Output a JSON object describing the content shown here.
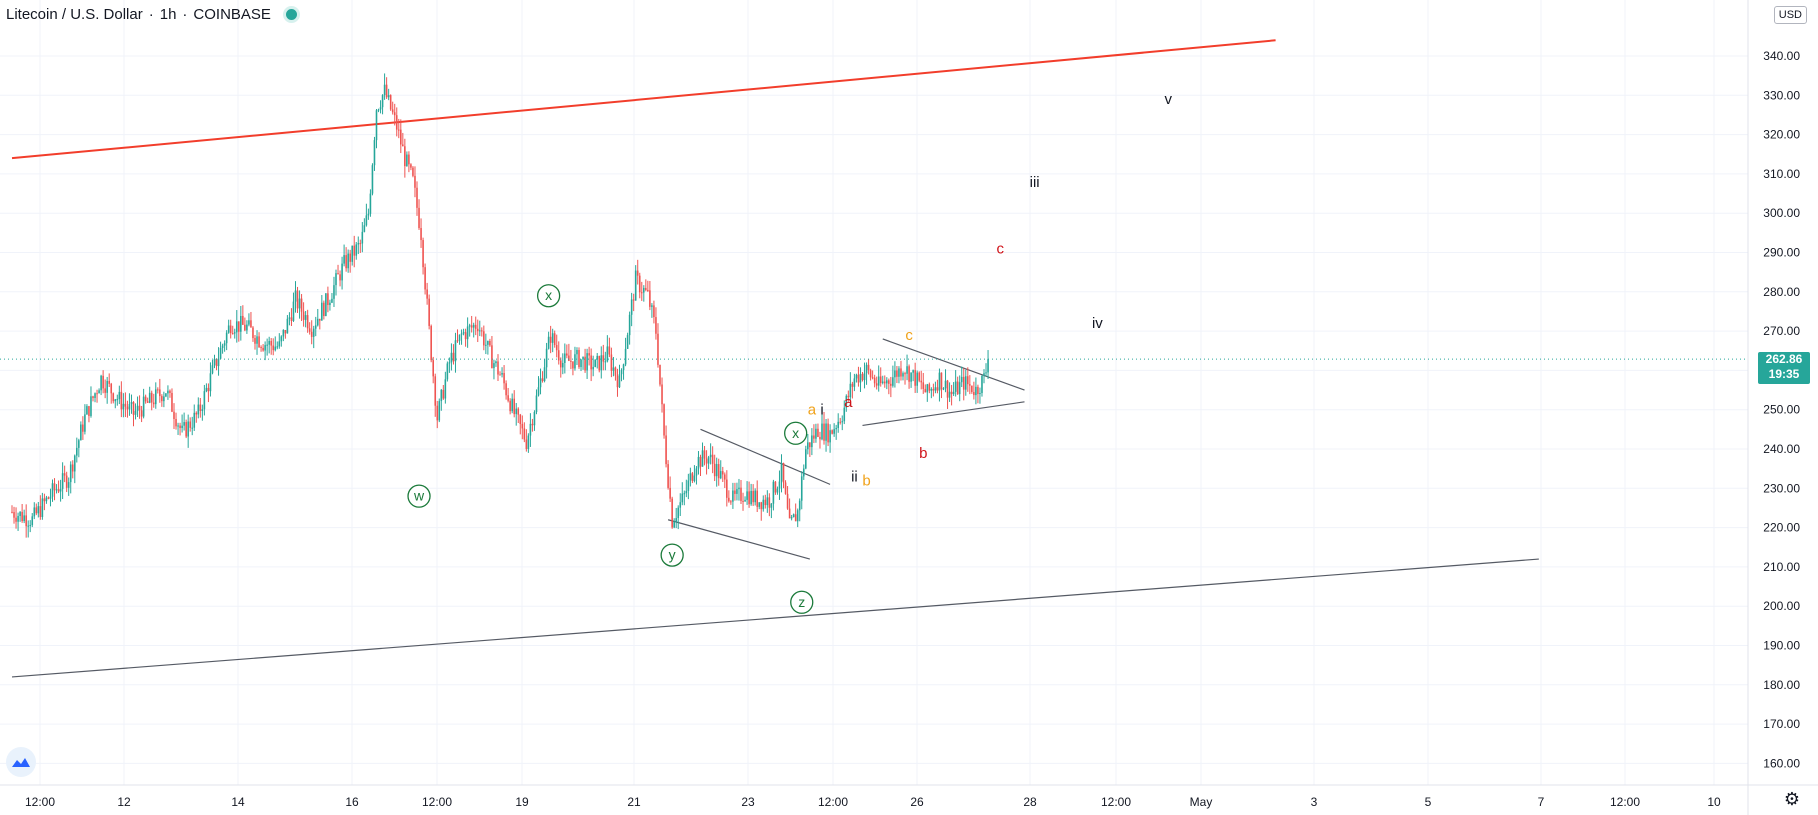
{
  "header": {
    "symbol": "Litecoin / U.S. Dollar",
    "interval": "1h",
    "exchange": "COINBASE",
    "currency": "USD"
  },
  "price_tag": {
    "price": "262.86",
    "countdown": "19:35"
  },
  "colors": {
    "up": "#26a69a",
    "down": "#ef5350",
    "channel_red": "#f23d2b",
    "trend_gray": "#555a64",
    "label_green": "#1b7a3a",
    "label_red": "#d0141a",
    "label_orange": "#f0a21a",
    "label_black": "#131722"
  },
  "chart_data": {
    "type": "candlestick",
    "y_ticks": [
      "340.00",
      "330.00",
      "320.00",
      "310.00",
      "300.00",
      "290.00",
      "280.00",
      "270.00",
      "260.00",
      "250.00",
      "240.00",
      "230.00",
      "220.00",
      "210.00",
      "200.00",
      "190.00",
      "180.00",
      "170.00",
      "160.00"
    ],
    "x_ticks": [
      "12:00",
      "12",
      "14",
      "16",
      "12:00",
      "19",
      "21",
      "23",
      "12:00",
      "26",
      "28",
      "12:00",
      "May",
      "3",
      "5",
      "7",
      "12:00",
      "10"
    ],
    "last_price": 262.86,
    "candles_close_path": [
      [
        0,
        224
      ],
      [
        5,
        222
      ],
      [
        10,
        229
      ],
      [
        14,
        233
      ],
      [
        18,
        248
      ],
      [
        22,
        258
      ],
      [
        26,
        253
      ],
      [
        30,
        249
      ],
      [
        34,
        252
      ],
      [
        38,
        255
      ],
      [
        42,
        244
      ],
      [
        46,
        249
      ],
      [
        50,
        261
      ],
      [
        54,
        272
      ],
      [
        58,
        271
      ],
      [
        62,
        267
      ],
      [
        66,
        266
      ],
      [
        70,
        278
      ],
      [
        74,
        271
      ],
      [
        78,
        278
      ],
      [
        82,
        287
      ],
      [
        86,
        292
      ],
      [
        88,
        300
      ],
      [
        90,
        327
      ],
      [
        92,
        331
      ],
      [
        95,
        322
      ],
      [
        97,
        314
      ],
      [
        99,
        308
      ],
      [
        101,
        295
      ],
      [
        103,
        270
      ],
      [
        105,
        248
      ],
      [
        108,
        262
      ],
      [
        111,
        269
      ],
      [
        115,
        272
      ],
      [
        118,
        264
      ],
      [
        121,
        258
      ],
      [
        124,
        249
      ],
      [
        127,
        242
      ],
      [
        130,
        255
      ],
      [
        133,
        269
      ],
      [
        136,
        262
      ],
      [
        140,
        263
      ],
      [
        144,
        261
      ],
      [
        147,
        264
      ],
      [
        150,
        257
      ],
      [
        154,
        283
      ],
      [
        157,
        279
      ],
      [
        159,
        270
      ],
      [
        161,
        243
      ],
      [
        163,
        222
      ],
      [
        166,
        228
      ],
      [
        169,
        237
      ],
      [
        172,
        238
      ],
      [
        175,
        233
      ],
      [
        178,
        227
      ],
      [
        181,
        229
      ],
      [
        184,
        227
      ],
      [
        187,
        227
      ],
      [
        190,
        234
      ],
      [
        192,
        220
      ],
      [
        194,
        224
      ],
      [
        196,
        240
      ],
      [
        199,
        245
      ],
      [
        202,
        244
      ],
      [
        205,
        249
      ],
      [
        208,
        258
      ],
      [
        211,
        260
      ],
      [
        214,
        256
      ],
      [
        217,
        258
      ],
      [
        220,
        261
      ],
      [
        223,
        258
      ],
      [
        226,
        254
      ],
      [
        229,
        258
      ],
      [
        232,
        254
      ],
      [
        235,
        257
      ],
      [
        238,
        255
      ],
      [
        240,
        258
      ],
      [
        241,
        262
      ]
    ],
    "waves": [
      {
        "label": "w",
        "circled": true,
        "x": 100.5,
        "price": 228
      },
      {
        "label": "x",
        "circled": true,
        "x": 132.5,
        "price": 279
      },
      {
        "label": "y",
        "circled": true,
        "x": 163,
        "price": 213
      },
      {
        "label": "x",
        "circled": true,
        "x": 193.5,
        "price": 244
      },
      {
        "label": "z",
        "circled": true,
        "x": 195,
        "price": 201
      },
      {
        "label": "a",
        "circled": false,
        "x": 197.5,
        "price": 250,
        "color": "orange"
      },
      {
        "label": "i",
        "circled": false,
        "x": 200,
        "price": 250,
        "color": "black"
      },
      {
        "label": "ii",
        "circled": false,
        "x": 208,
        "price": 233,
        "color": "black"
      },
      {
        "label": "b",
        "circled": false,
        "x": 211,
        "price": 232,
        "color": "orange"
      },
      {
        "label": "a",
        "circled": false,
        "x": 206.5,
        "price": 252,
        "color": "red"
      },
      {
        "label": "c",
        "circled": false,
        "x": 221.5,
        "price": 269,
        "color": "orange"
      },
      {
        "label": "b",
        "circled": false,
        "x": 225,
        "price": 239,
        "color": "red"
      },
      {
        "label": "c",
        "circled": false,
        "x": 244,
        "price": 291,
        "color": "red"
      },
      {
        "label": "iii",
        "circled": false,
        "x": 252.5,
        "price": 308,
        "color": "black"
      },
      {
        "label": "iv",
        "circled": false,
        "x": 268,
        "price": 272,
        "color": "black"
      },
      {
        "label": "v",
        "circled": false,
        "x": 285.5,
        "price": 329,
        "color": "black"
      }
    ],
    "trendlines": [
      {
        "name": "upper-channel",
        "color": "red",
        "p1": [
          0,
          314
        ],
        "p2": [
          312,
          344
        ]
      },
      {
        "name": "lower-trend",
        "color": "gray",
        "p1": [
          0,
          182
        ],
        "p2": [
          377,
          212
        ]
      },
      {
        "name": "wedge-top",
        "color": "gray",
        "p1": [
          170,
          245
        ],
        "p2": [
          202,
          231
        ]
      },
      {
        "name": "wedge-bottom",
        "color": "gray",
        "p1": [
          162,
          222
        ],
        "p2": [
          197,
          212
        ]
      },
      {
        "name": "triangle-top",
        "color": "gray",
        "p1": [
          215,
          268
        ],
        "p2": [
          250,
          255
        ]
      },
      {
        "name": "triangle-bottom",
        "color": "gray",
        "p1": [
          210,
          246
        ],
        "p2": [
          250,
          252
        ]
      }
    ]
  }
}
